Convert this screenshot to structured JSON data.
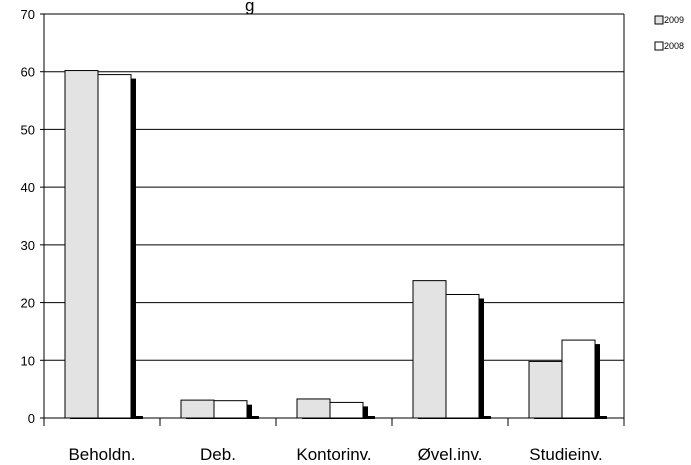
{
  "chart_data": {
    "type": "bar",
    "title_fragment": "g",
    "categories": [
      "Beholdn.",
      "Deb.",
      "Kontorinv.",
      "Øvel.inv.",
      "Studieinv."
    ],
    "series": [
      {
        "name": "2009",
        "values": [
          60.2,
          3.1,
          3.3,
          23.8,
          9.8
        ],
        "color": "#e3e3e3"
      },
      {
        "name": "2008",
        "values": [
          59.5,
          3.0,
          2.7,
          21.4,
          13.5
        ],
        "color": "#ffffff"
      }
    ],
    "ylim": [
      0,
      70
    ],
    "yticks": [
      0,
      10,
      20,
      30,
      40,
      50,
      60,
      70
    ],
    "grid": true,
    "legend_position": "top-right",
    "bar_outline": "#000000",
    "shadow_color": "#000000"
  }
}
